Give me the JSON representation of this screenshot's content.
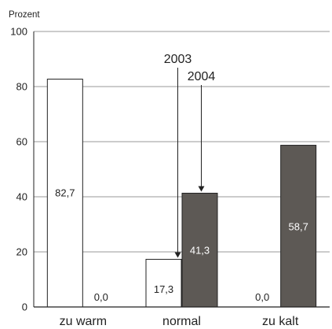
{
  "chart_data": {
    "type": "bar",
    "ylabel": "Prozent",
    "ylim": [
      0,
      100
    ],
    "yticks": [
      0,
      20,
      40,
      60,
      80,
      100
    ],
    "grid": true,
    "categories": [
      "zu warm",
      "normal",
      "zu kalt"
    ],
    "series": [
      {
        "name": "2003",
        "color": "#ffffff",
        "values": [
          82.7,
          17.3,
          0.0
        ],
        "labels": [
          "82,7",
          "17,3",
          "0,0"
        ]
      },
      {
        "name": "2004",
        "color": "#5d5955",
        "values": [
          0.0,
          41.3,
          58.7
        ],
        "labels": [
          "0,0",
          "41,3",
          "58,7"
        ]
      }
    ],
    "annotations": [
      {
        "text": "2003",
        "series_index": 0,
        "category_index": 1
      },
      {
        "text": "2004",
        "series_index": 1,
        "category_index": 1
      }
    ]
  }
}
